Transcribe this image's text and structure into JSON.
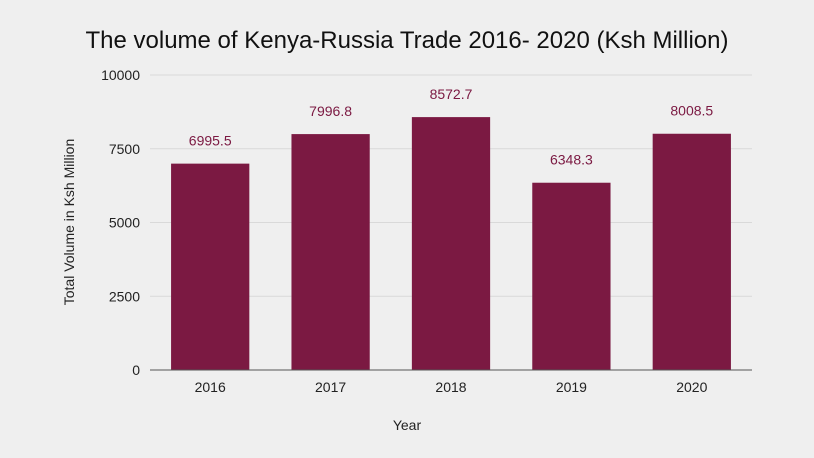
{
  "chart_data": {
    "type": "bar",
    "title": "The volume of Kenya-Russia Trade 2016- 2020 (Ksh Million)",
    "xlabel": "Year",
    "ylabel": "Total Volume in Ksh Million",
    "categories": [
      "2016",
      "2017",
      "2018",
      "2019",
      "2020"
    ],
    "values": [
      6995.5,
      7996.8,
      8572.7,
      6348.3,
      8008.5
    ],
    "data_labels": [
      "6995.5",
      "7996.8",
      "8572.7",
      "6348.3",
      "8008.5"
    ],
    "ylim": [
      0,
      10000
    ],
    "yticks": [
      0,
      2500,
      5000,
      7500,
      10000
    ],
    "ytick_labels": [
      "0",
      "2500",
      "5000",
      "7500",
      "10000"
    ],
    "grid": true,
    "legend": "none",
    "colors": {
      "bar": "#7b1942",
      "data_label": "#7b1942",
      "grid": "#d9d9d9",
      "background": "#efefef"
    }
  }
}
